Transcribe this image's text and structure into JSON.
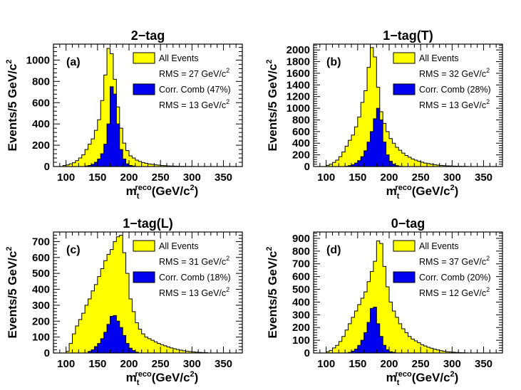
{
  "chart_data": [
    {
      "type": "histogram",
      "panel_label": "(a)",
      "title": "2−tag",
      "ylabel": "Events/5 GeV/c",
      "ylabel_sup": "2",
      "xlabel": {
        "sym": "m",
        "sub": "t",
        "sup": "reco",
        "units": "(GeV/c",
        "units_sup": "2",
        "close": ")"
      },
      "xlim": [
        80,
        380
      ],
      "ylim": [
        0,
        1150
      ],
      "xticks": [
        100,
        150,
        200,
        250,
        300,
        350
      ],
      "yticks": [
        0,
        200,
        400,
        600,
        800,
        1000
      ],
      "bin_width": 5,
      "series": [
        {
          "name": "All Events",
          "color": "#ffff00",
          "x_start": 95,
          "values": [
            10,
            15,
            25,
            35,
            55,
            80,
            110,
            160,
            210,
            260,
            340,
            440,
            620,
            860,
            1110,
            1060,
            820,
            560,
            360,
            220,
            150,
            100,
            80,
            60,
            48,
            38,
            30,
            24,
            20,
            16,
            13,
            10,
            8,
            6,
            5,
            4,
            3,
            2,
            2,
            1,
            1,
            1
          ]
        },
        {
          "name": "Corr. Comb (47%)",
          "color": "#0000ee",
          "x_start": 130,
          "values": [
            5,
            10,
            20,
            40,
            70,
            120,
            210,
            400,
            750,
            680,
            400,
            160,
            70,
            25,
            10,
            5
          ]
        }
      ],
      "legend": [
        {
          "label": "All Events",
          "color": "#ffff00",
          "swatch": true
        },
        {
          "label": "RMS = 27 GeV/c",
          "sup": "2",
          "swatch": false
        },
        {
          "label": "Corr. Comb (47%)",
          "color": "#0000ee",
          "swatch": true
        },
        {
          "label": "RMS = 13 GeV/c",
          "sup": "2",
          "swatch": false
        }
      ]
    },
    {
      "type": "histogram",
      "panel_label": "(b)",
      "title": "1−tag(T)",
      "ylabel": "Events/5 GeV/c",
      "ylabel_sup": "2",
      "xlabel": {
        "sym": "m",
        "sub": "t",
        "sup": "reco",
        "units": "(GeV/c",
        "units_sup": "2",
        "close": ")"
      },
      "xlim": [
        80,
        380
      ],
      "ylim": [
        0,
        2100
      ],
      "xticks": [
        100,
        150,
        200,
        250,
        300,
        350
      ],
      "yticks": [
        0,
        200,
        400,
        600,
        800,
        1000,
        1200,
        1400,
        1600,
        1800,
        2000
      ],
      "bin_width": 5,
      "series": [
        {
          "name": "All Events",
          "color": "#ffff00",
          "x_start": 100,
          "values": [
            20,
            40,
            70,
            110,
            170,
            250,
            350,
            450,
            540,
            680,
            850,
            1100,
            1300,
            1700,
            2040,
            1880,
            1360,
            940,
            740,
            600,
            480,
            400,
            330,
            280,
            230,
            190,
            160,
            130,
            110,
            90,
            75,
            60,
            50,
            40,
            32,
            25,
            20,
            15,
            12,
            10,
            8,
            6,
            4,
            3,
            2
          ]
        },
        {
          "name": "Corr. Comb (28%)",
          "color": "#0000ee",
          "x_start": 130,
          "values": [
            5,
            15,
            30,
            60,
            100,
            170,
            270,
            420,
            600,
            820,
            1000,
            800,
            420,
            200,
            90,
            40,
            15,
            5
          ]
        }
      ],
      "legend": [
        {
          "label": "All Events",
          "color": "#ffff00",
          "swatch": true
        },
        {
          "label": "RMS = 32 GeV/c",
          "sup": "2",
          "swatch": false
        },
        {
          "label": "Corr. Comb (28%)",
          "color": "#0000ee",
          "swatch": true
        },
        {
          "label": "RMS = 13 GeV/c",
          "sup": "2",
          "swatch": false
        }
      ]
    },
    {
      "type": "histogram",
      "panel_label": "(c)",
      "title": "1−tag(L)",
      "ylabel": "Events/5 GeV/c",
      "ylabel_sup": "2",
      "xlabel": {
        "sym": "m",
        "sub": "t",
        "sup": "reco",
        "units": "(GeV/c",
        "units_sup": "2",
        "close": ")"
      },
      "xlim": [
        80,
        380
      ],
      "ylim": [
        0,
        760
      ],
      "xticks": [
        100,
        150,
        200,
        250,
        300,
        350
      ],
      "yticks": [
        0,
        100,
        200,
        300,
        400,
        500,
        600,
        700
      ],
      "bin_width": 5,
      "series": [
        {
          "name": "All Events",
          "color": "#ffff00",
          "x_start": 100,
          "values": [
            10,
            60,
            120,
            170,
            210,
            250,
            300,
            340,
            390,
            430,
            480,
            530,
            580,
            620,
            650,
            700,
            730,
            740,
            630,
            500,
            340,
            260,
            190,
            150,
            120,
            100,
            90,
            80,
            70,
            60,
            52,
            45,
            38,
            32,
            27,
            22,
            18,
            14,
            11,
            9,
            7,
            5,
            4,
            3,
            2
          ]
        },
        {
          "name": "Corr. Comb (18%)",
          "color": "#0000ee",
          "x_start": 135,
          "values": [
            10,
            20,
            40,
            60,
            90,
            130,
            180,
            230,
            235,
            200,
            160,
            110,
            60,
            30,
            15,
            5
          ]
        }
      ],
      "legend": [
        {
          "label": "All Events",
          "color": "#ffff00",
          "swatch": true
        },
        {
          "label": "RMS = 31 GeV/c",
          "sup": "2",
          "swatch": false
        },
        {
          "label": "Corr. Comb (18%)",
          "color": "#0000ee",
          "swatch": true
        },
        {
          "label": "RMS = 13 GeV/c",
          "sup": "2",
          "swatch": false
        }
      ]
    },
    {
      "type": "histogram",
      "panel_label": "(d)",
      "title": "0−tag",
      "ylabel": "Events/5 GeV/c",
      "ylabel_sup": "2",
      "xlabel": {
        "sym": "m",
        "sub": "t",
        "sup": "reco",
        "units": "(GeV/c",
        "units_sup": "2",
        "close": ")"
      },
      "xlim": [
        80,
        380
      ],
      "ylim": [
        0,
        950
      ],
      "xticks": [
        100,
        150,
        200,
        250,
        300,
        350
      ],
      "yticks": [
        0,
        100,
        200,
        300,
        400,
        500,
        600,
        700,
        800,
        900
      ],
      "bin_width": 5,
      "series": [
        {
          "name": "All Events",
          "color": "#ffff00",
          "x_start": 100,
          "values": [
            10,
            20,
            40,
            60,
            90,
            130,
            180,
            230,
            280,
            330,
            380,
            430,
            480,
            560,
            640,
            720,
            880,
            860,
            680,
            520,
            400,
            330,
            280,
            230,
            190,
            160,
            130,
            110,
            95,
            80,
            65,
            55,
            45,
            38,
            30,
            24,
            18,
            14,
            10,
            8,
            6,
            4,
            3,
            2,
            1
          ]
        },
        {
          "name": "Corr. Comb (20%)",
          "color": "#0000ee",
          "x_start": 135,
          "values": [
            5,
            15,
            30,
            60,
            100,
            160,
            240,
            350,
            360,
            230,
            130,
            60,
            25,
            10,
            5
          ]
        }
      ],
      "legend": [
        {
          "label": "All Events",
          "color": "#ffff00",
          "swatch": true
        },
        {
          "label": "RMS = 37 GeV/c",
          "sup": "2",
          "swatch": false
        },
        {
          "label": "Corr. Comb (20%)",
          "color": "#0000ee",
          "swatch": true
        },
        {
          "label": "RMS = 12 GeV/c",
          "sup": "2",
          "swatch": false
        }
      ]
    }
  ]
}
